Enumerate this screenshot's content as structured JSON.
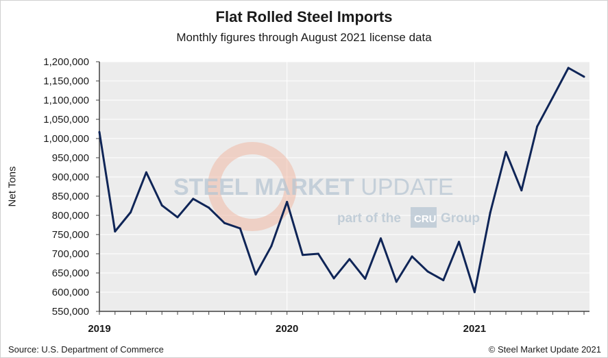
{
  "chart_data": {
    "type": "line",
    "title": "Flat Rolled Steel Imports",
    "subtitle": "Monthly figures through August 2021 license data",
    "xlabel": "",
    "ylabel": "Net Tons",
    "ylim": [
      550000,
      1200000
    ],
    "ytick_step": 50000,
    "x_tick_labels": [
      "2019",
      "2020",
      "2021"
    ],
    "x_tick_indices": [
      0,
      12,
      24
    ],
    "x_count_months": 32,
    "grid": true,
    "series": [
      {
        "name": "Flat Rolled Steel Imports",
        "color": "#0f2557",
        "x": [
          "2019-01",
          "2019-02",
          "2019-03",
          "2019-04",
          "2019-05",
          "2019-06",
          "2019-07",
          "2019-08",
          "2019-09",
          "2019-10",
          "2019-11",
          "2019-12",
          "2020-01",
          "2020-02",
          "2020-03",
          "2020-04",
          "2020-05",
          "2020-06",
          "2020-07",
          "2020-08",
          "2020-09",
          "2020-10",
          "2020-11",
          "2020-12",
          "2021-01",
          "2021-02",
          "2021-03",
          "2021-04",
          "2021-05",
          "2021-06",
          "2021-07",
          "2021-08"
        ],
        "values": [
          1017000,
          758000,
          808000,
          912000,
          826000,
          795000,
          843000,
          820000,
          780000,
          766000,
          646000,
          720000,
          835000,
          697000,
          700000,
          636000,
          686000,
          635000,
          740000,
          627000,
          693000,
          654000,
          631000,
          731000,
          600000,
          807000,
          965000,
          865000,
          1031000,
          1107000,
          1184000,
          1161000
        ]
      }
    ]
  },
  "source": "Source: U.S. Department of Commerce",
  "copyright": "© Steel Market Update 2021",
  "watermark": {
    "main_bold": "STEEL MARKET",
    "main_light": "UPDATE",
    "sub_prefix": "part of the",
    "sub_box": "CRU",
    "sub_suffix": "Group"
  }
}
